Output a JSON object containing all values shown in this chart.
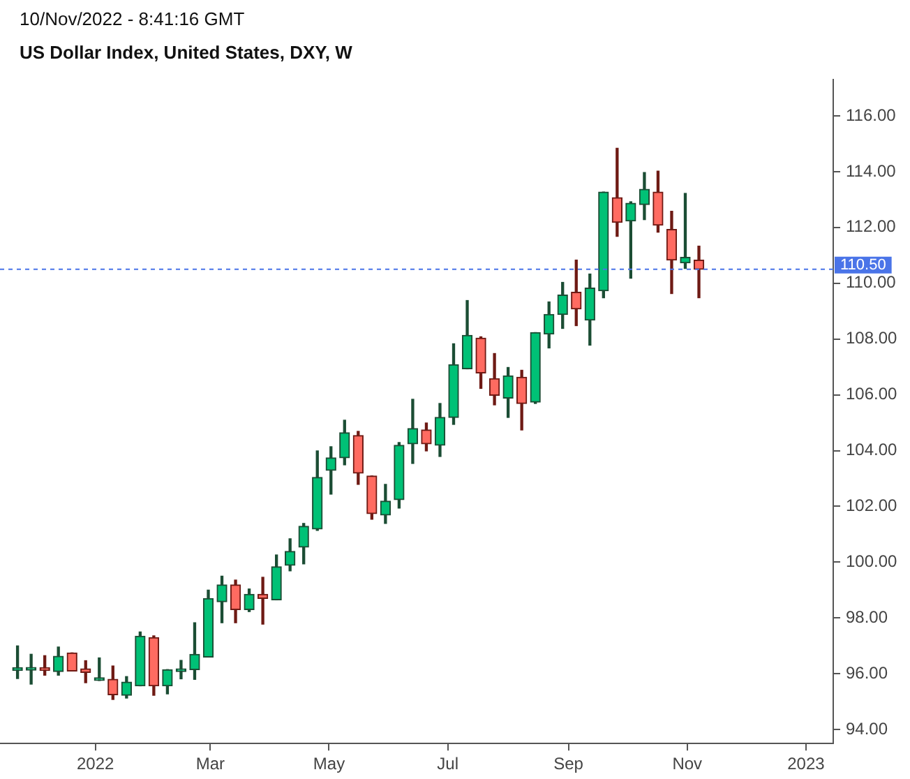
{
  "chart_data": {
    "type": "candlestick",
    "title": "US Dollar Index, United States, DXY, W",
    "subtitle": "10/Nov/2022 - 8:41:16 GMT",
    "x": [
      "2021-11-22",
      "2021-11-29",
      "2021-12-06",
      "2021-12-13",
      "2021-12-20",
      "2021-12-27",
      "2022-01-03",
      "2022-01-10",
      "2022-01-17",
      "2022-01-24",
      "2022-01-31",
      "2022-02-07",
      "2022-02-14",
      "2022-02-21",
      "2022-02-28",
      "2022-03-07",
      "2022-03-14",
      "2022-03-21",
      "2022-03-28",
      "2022-04-04",
      "2022-04-11",
      "2022-04-18",
      "2022-04-25",
      "2022-05-02",
      "2022-05-09",
      "2022-05-16",
      "2022-05-23",
      "2022-05-30",
      "2022-06-06",
      "2022-06-13",
      "2022-06-20",
      "2022-06-27",
      "2022-07-04",
      "2022-07-11",
      "2022-07-18",
      "2022-07-25",
      "2022-08-01",
      "2022-08-08",
      "2022-08-15",
      "2022-08-22",
      "2022-08-29",
      "2022-09-05",
      "2022-09-12",
      "2022-09-19",
      "2022-09-26",
      "2022-10-03",
      "2022-10-10",
      "2022-10-17",
      "2022-10-24",
      "2022-10-31",
      "2022-11-07"
    ],
    "ohlc": [
      [
        96.12,
        97.0,
        95.83,
        96.16
      ],
      [
        96.13,
        96.7,
        95.63,
        96.18
      ],
      [
        96.18,
        96.65,
        95.95,
        96.12
      ],
      [
        96.08,
        96.96,
        95.95,
        96.63
      ],
      [
        96.75,
        96.75,
        96.1,
        96.1
      ],
      [
        96.18,
        96.47,
        95.68,
        96.05
      ],
      [
        95.76,
        96.57,
        95.76,
        95.78
      ],
      [
        95.8,
        96.28,
        95.08,
        95.25
      ],
      [
        95.23,
        95.9,
        95.13,
        95.7
      ],
      [
        95.57,
        97.5,
        95.57,
        97.35
      ],
      [
        97.3,
        97.36,
        95.23,
        95.57
      ],
      [
        95.57,
        96.15,
        95.28,
        96.15
      ],
      [
        96.08,
        96.48,
        95.82,
        96.12
      ],
      [
        96.15,
        97.83,
        95.8,
        96.7
      ],
      [
        96.6,
        99.0,
        96.6,
        98.7
      ],
      [
        98.58,
        99.5,
        97.83,
        99.19
      ],
      [
        99.19,
        99.36,
        97.83,
        98.3
      ],
      [
        98.3,
        99.04,
        98.23,
        98.85
      ],
      [
        98.85,
        99.46,
        97.78,
        98.7
      ],
      [
        98.65,
        100.26,
        98.65,
        99.84
      ],
      [
        99.89,
        100.84,
        99.69,
        100.39
      ],
      [
        100.54,
        101.39,
        99.94,
        101.29
      ],
      [
        101.19,
        103.99,
        101.14,
        103.04
      ],
      [
        103.29,
        104.14,
        102.44,
        103.74
      ],
      [
        103.74,
        105.09,
        103.49,
        104.64
      ],
      [
        104.54,
        104.69,
        102.79,
        103.19
      ],
      [
        103.09,
        103.09,
        101.54,
        101.74
      ],
      [
        101.69,
        102.79,
        101.39,
        102.19
      ],
      [
        102.24,
        104.29,
        101.94,
        104.19
      ],
      [
        104.24,
        105.84,
        103.54,
        104.79
      ],
      [
        104.74,
        104.99,
        103.99,
        104.24
      ],
      [
        104.19,
        105.69,
        103.79,
        105.19
      ],
      [
        105.19,
        107.83,
        104.94,
        107.08
      ],
      [
        106.93,
        109.38,
        106.93,
        108.13
      ],
      [
        108.03,
        108.08,
        106.23,
        106.78
      ],
      [
        106.58,
        107.48,
        105.64,
        105.98
      ],
      [
        105.88,
        106.98,
        105.19,
        106.68
      ],
      [
        106.63,
        106.88,
        104.74,
        105.69
      ],
      [
        105.74,
        108.23,
        105.69,
        108.23
      ],
      [
        108.18,
        109.33,
        107.68,
        108.88
      ],
      [
        108.88,
        110.03,
        108.38,
        109.58
      ],
      [
        109.68,
        110.83,
        108.48,
        109.08
      ],
      [
        108.68,
        110.33,
        107.78,
        109.83
      ],
      [
        109.73,
        113.27,
        109.48,
        113.27
      ],
      [
        113.07,
        114.84,
        111.68,
        112.18
      ],
      [
        112.23,
        112.92,
        110.18,
        112.87
      ],
      [
        112.82,
        113.97,
        112.28,
        113.37
      ],
      [
        113.27,
        114.02,
        111.83,
        112.08
      ],
      [
        111.93,
        112.58,
        109.63,
        110.83
      ],
      [
        110.73,
        113.22,
        110.53,
        110.93
      ],
      [
        110.83,
        111.33,
        109.48,
        110.5
      ]
    ],
    "xlim": [
      "2021-11-13",
      "2023-01-15"
    ],
    "xticks": [
      {
        "value": "2022-01-01",
        "label": "2022"
      },
      {
        "value": "2022-03-01",
        "label": "Mar"
      },
      {
        "value": "2022-05-01",
        "label": "May"
      },
      {
        "value": "2022-07-01",
        "label": "Jul"
      },
      {
        "value": "2022-09-01",
        "label": "Sep"
      },
      {
        "value": "2022-11-01",
        "label": "Nov"
      },
      {
        "value": "2023-01-01",
        "label": "2023"
      }
    ],
    "ylim": [
      93.5,
      117.3
    ],
    "yticks": [
      {
        "value": 94,
        "label": "94.00"
      },
      {
        "value": 96,
        "label": "96.00"
      },
      {
        "value": 98,
        "label": "98.00"
      },
      {
        "value": 100,
        "label": "100.00"
      },
      {
        "value": 102,
        "label": "102.00"
      },
      {
        "value": 104,
        "label": "104.00"
      },
      {
        "value": 106,
        "label": "106.00"
      },
      {
        "value": 108,
        "label": "108.00"
      },
      {
        "value": 110,
        "label": "110.00"
      },
      {
        "value": 112,
        "label": "112.00"
      },
      {
        "value": 114,
        "label": "114.00"
      },
      {
        "value": 116,
        "label": "116.00"
      }
    ],
    "ref_lines": [
      {
        "axis": "y",
        "value": 110.5,
        "label": "110.50",
        "color": "#4a74e8",
        "line_style": "dashed"
      }
    ],
    "grid": false,
    "legend": false
  }
}
